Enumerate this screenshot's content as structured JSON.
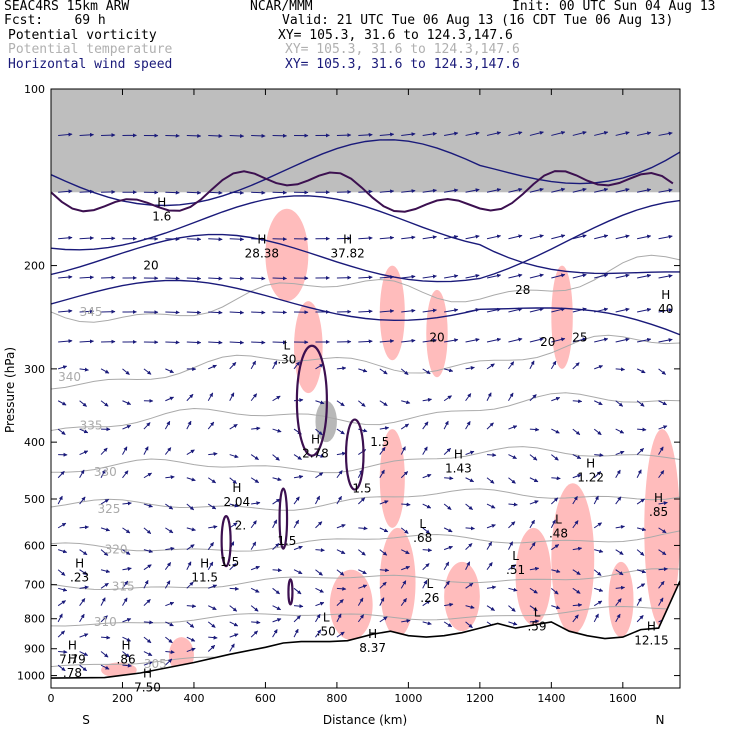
{
  "header": {
    "model": "SEAC4RS 15km ARW",
    "forecast": "Fcst:    69 h",
    "org": "NCAR/MMM",
    "init": "Init: 00 UTC Sun 04 Aug 13",
    "valid": "Valid: 21 UTC Tue 06 Aug 13 (16 CDT Tue 06 Aug 13)",
    "field1_name": "Potential vorticity",
    "field1_xy": "XY= 105.3, 31.6 to 124.3,147.6",
    "field2_name": "Potential temperature",
    "field2_xy": "XY= 105.3, 31.6 to 124.3,147.6",
    "field3_name": "Horizontal wind speed",
    "field3_xy": "XY= 105.3, 31.6 to 124.3,147.6"
  },
  "colors": {
    "pv": "#3c1050",
    "theta": "#aaaaaa",
    "wind": "#1a1a7a",
    "pv_fill_low": "#ffb8b8",
    "pv_fill_high": "#888888"
  },
  "chart_data": {
    "type": "cross-section",
    "xlabel": "Distance (km)",
    "ylabel": "Pressure (hPa)",
    "xlim": [
      0,
      1760
    ],
    "ylim": [
      100,
      1050
    ],
    "y_scale": "log",
    "x_ticks": [
      "0",
      "200",
      "400",
      "600",
      "800",
      "1000",
      "1200",
      "1400",
      "1600"
    ],
    "y_ticks": [
      "100",
      "200",
      "300",
      "400",
      "500",
      "600",
      "700",
      "800",
      "900",
      "1000"
    ],
    "end_labels": {
      "left": "S",
      "right": "N"
    },
    "terrain_surface": [
      [
        0,
        1010
      ],
      [
        150,
        1008
      ],
      [
        250,
        990
      ],
      [
        400,
        950
      ],
      [
        500,
        920
      ],
      [
        600,
        895
      ],
      [
        650,
        880
      ],
      [
        700,
        875
      ],
      [
        780,
        875
      ],
      [
        830,
        872
      ],
      [
        900,
        850
      ],
      [
        950,
        840
      ],
      [
        1000,
        855
      ],
      [
        1050,
        860
      ],
      [
        1100,
        855
      ],
      [
        1150,
        845
      ],
      [
        1200,
        830
      ],
      [
        1250,
        815
      ],
      [
        1300,
        830
      ],
      [
        1350,
        820
      ],
      [
        1400,
        810
      ],
      [
        1450,
        840
      ],
      [
        1500,
        855
      ],
      [
        1550,
        865
      ],
      [
        1600,
        860
      ],
      [
        1650,
        835
      ],
      [
        1700,
        830
      ],
      [
        1760,
        690
      ]
    ],
    "theta_isentropes": [
      {
        "value": "345",
        "label_x": 80,
        "label_p": 240
      },
      {
        "value": "340",
        "label_x": 20,
        "label_p": 310
      },
      {
        "value": "335",
        "label_x": 80,
        "label_p": 375
      },
      {
        "value": "330",
        "label_x": 120,
        "label_p": 450
      },
      {
        "value": "325",
        "label_x": 130,
        "label_p": 520
      },
      {
        "value": "320",
        "label_x": 150,
        "label_p": 610
      },
      {
        "value": "315",
        "label_x": 170,
        "label_p": 705
      },
      {
        "value": "310",
        "label_x": 120,
        "label_p": 810
      },
      {
        "value": "305",
        "label_x": 260,
        "label_p": 955
      }
    ],
    "highs_lows": [
      {
        "t": "H",
        "v": "1.6",
        "x": 310,
        "p": 160
      },
      {
        "t": "H",
        "v": "28.38",
        "x": 590,
        "p": 185
      },
      {
        "t": "H",
        "v": "37.82",
        "x": 830,
        "p": 185
      },
      {
        "t": "H",
        "v": "40",
        "x": 1720,
        "p": 230
      },
      {
        "t": "L",
        "v": ".30",
        "x": 660,
        "p": 280
      },
      {
        "t": "H",
        "v": "2.78",
        "x": 740,
        "p": 405
      },
      {
        "t": "H",
        "v": "1.43",
        "x": 1140,
        "p": 430
      },
      {
        "t": "H",
        "v": "1.22",
        "x": 1510,
        "p": 445
      },
      {
        "t": "H",
        "v": "2.04",
        "x": 520,
        "p": 490
      },
      {
        "t": "H",
        "v": ".85",
        "x": 1700,
        "p": 510
      },
      {
        "t": "L",
        "v": ".48",
        "x": 1420,
        "p": 555
      },
      {
        "t": "L",
        "v": ".68",
        "x": 1040,
        "p": 565
      },
      {
        "t": "L",
        "v": ".51",
        "x": 1300,
        "p": 640
      },
      {
        "t": "H",
        "v": ".23",
        "x": 80,
        "p": 660
      },
      {
        "t": "H",
        "v": "11.5",
        "x": 430,
        "p": 660
      },
      {
        "t": "L",
        "v": ".26",
        "x": 1060,
        "p": 715
      },
      {
        "t": "L",
        "v": ".50",
        "x": 770,
        "p": 815
      },
      {
        "t": "L",
        "v": ".59",
        "x": 1360,
        "p": 800
      },
      {
        "t": "H",
        "v": "12.15",
        "x": 1680,
        "p": 845
      },
      {
        "t": "H",
        "v": "8.37",
        "x": 900,
        "p": 870
      },
      {
        "t": "H",
        "v": "7.79",
        "x": 60,
        "p": 910
      },
      {
        "t": "H",
        "v": ".86",
        "x": 210,
        "p": 910
      },
      {
        "t": "H",
        "v": ".78",
        "x": 60,
        "p": 960
      },
      {
        "t": "H",
        "v": "7.50",
        "x": 270,
        "p": 1015
      }
    ],
    "contour_labels": [
      {
        "v": "20",
        "x": 280,
        "p": 200
      },
      {
        "v": "20",
        "x": 1080,
        "p": 265
      },
      {
        "v": "28",
        "x": 1320,
        "p": 220
      },
      {
        "v": "20",
        "x": 1390,
        "p": 270
      },
      {
        "v": "25",
        "x": 1480,
        "p": 265
      },
      {
        "v": "1.5",
        "x": 920,
        "p": 400
      },
      {
        "v": "1.5",
        "x": 870,
        "p": 480
      },
      {
        "v": "1.5",
        "x": 660,
        "p": 590
      },
      {
        "v": "2.",
        "x": 530,
        "p": 555
      },
      {
        "v": "1.5",
        "x": 500,
        "p": 640
      }
    ],
    "pv_positive_regions": [
      {
        "x0": 600,
        "x1": 720,
        "p0": 160,
        "p1": 230
      },
      {
        "x0": 680,
        "x1": 760,
        "p0": 230,
        "p1": 330
      },
      {
        "x0": 920,
        "x1": 990,
        "p0": 200,
        "p1": 290
      },
      {
        "x0": 1050,
        "x1": 1110,
        "p0": 220,
        "p1": 310
      },
      {
        "x0": 1400,
        "x1": 1460,
        "p0": 200,
        "p1": 300
      },
      {
        "x0": 920,
        "x1": 990,
        "p0": 380,
        "p1": 560
      },
      {
        "x0": 1400,
        "x1": 1520,
        "p0": 470,
        "p1": 850
      },
      {
        "x0": 1300,
        "x1": 1400,
        "p0": 560,
        "p1": 820
      },
      {
        "x0": 1100,
        "x1": 1200,
        "p0": 640,
        "p1": 840
      },
      {
        "x0": 920,
        "x1": 1020,
        "p0": 560,
        "p1": 860
      },
      {
        "x0": 780,
        "x1": 900,
        "p0": 660,
        "p1": 870
      },
      {
        "x0": 1560,
        "x1": 1630,
        "p0": 640,
        "p1": 860
      },
      {
        "x0": 1660,
        "x1": 1760,
        "p0": 380,
        "p1": 830
      },
      {
        "x0": 330,
        "x1": 400,
        "p0": 860,
        "p1": 990
      },
      {
        "x0": 140,
        "x1": 240,
        "p0": 950,
        "p1": 1008
      }
    ],
    "pv_high_regions": [
      {
        "x0": 0,
        "x1": 1760,
        "p0": 100,
        "p1": 150
      },
      {
        "x0": 740,
        "x1": 800,
        "p0": 340,
        "p1": 400
      }
    ],
    "wind_grid": {
      "x_step": 60,
      "rows_hPa": [
        120,
        150,
        180,
        210,
        240,
        270,
        300,
        340,
        380,
        420,
        460,
        510,
        560,
        610,
        660,
        710,
        760,
        810,
        860,
        910,
        960
      ]
    }
  }
}
